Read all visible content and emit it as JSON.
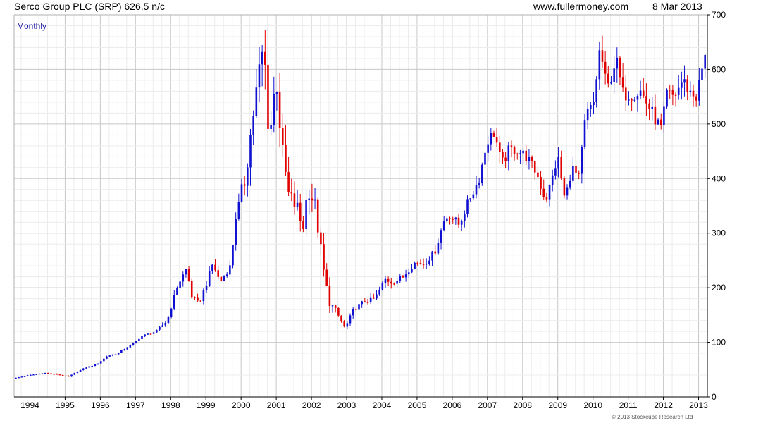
{
  "header": {
    "title": "Serco Group PLC (SRP) 626.5 n/c",
    "website": "www.fullermoney.com",
    "date": "8 Mar 2013"
  },
  "period_label": "Monthly",
  "copyright": "© 2013 Stockcube Research Ltd",
  "colors": {
    "up": "#1010d0",
    "down": "#e00000",
    "grid": "#dcdcdc",
    "axis": "#000000"
  },
  "chart_data": {
    "type": "candlestick",
    "title": "Serco Group PLC (SRP) 626.5 n/c",
    "xlabel": "",
    "ylabel": "",
    "xlim": [
      1993.55,
      1994.0,
      2013.25
    ],
    "ylim": [
      0,
      700
    ],
    "yticks": [
      0,
      100,
      200,
      300,
      400,
      500,
      600,
      700
    ],
    "xticks": [
      1994,
      1995,
      1996,
      1997,
      1998,
      1999,
      2000,
      2001,
      2002,
      2003,
      2004,
      2005,
      2006,
      2007,
      2008,
      2009,
      2010,
      2011,
      2012,
      2013
    ],
    "grid": true,
    "y_axis_side": "right",
    "start": "1993-08",
    "anchors": [
      [
        1993.6,
        35
      ],
      [
        1994.0,
        40
      ],
      [
        1994.4,
        44
      ],
      [
        1994.8,
        41
      ],
      [
        1995.1,
        37
      ],
      [
        1995.3,
        45
      ],
      [
        1995.6,
        54
      ],
      [
        1995.9,
        60
      ],
      [
        1996.2,
        75
      ],
      [
        1996.5,
        80
      ],
      [
        1996.9,
        97
      ],
      [
        1997.2,
        112
      ],
      [
        1997.6,
        120
      ],
      [
        1997.9,
        140
      ],
      [
        1998.2,
        205
      ],
      [
        1998.45,
        235
      ],
      [
        1998.6,
        185
      ],
      [
        1998.8,
        170
      ],
      [
        1999.0,
        205
      ],
      [
        1999.2,
        245
      ],
      [
        1999.4,
        210
      ],
      [
        1999.7,
        240
      ],
      [
        1999.85,
        330
      ],
      [
        2000.1,
        395
      ],
      [
        2000.35,
        520
      ],
      [
        2000.55,
        610
      ],
      [
        2000.65,
        640
      ],
      [
        2000.8,
        470
      ],
      [
        2001.0,
        590
      ],
      [
        2001.15,
        460
      ],
      [
        2001.35,
        370
      ],
      [
        2001.6,
        345
      ],
      [
        2001.75,
        305
      ],
      [
        2001.9,
        385
      ],
      [
        2002.1,
        350
      ],
      [
        2002.35,
        230
      ],
      [
        2002.5,
        175
      ],
      [
        2002.75,
        150
      ],
      [
        2002.95,
        125
      ],
      [
        2003.2,
        160
      ],
      [
        2003.5,
        175
      ],
      [
        2003.8,
        180
      ],
      [
        2004.1,
        215
      ],
      [
        2004.3,
        210
      ],
      [
        2004.6,
        220
      ],
      [
        2004.9,
        245
      ],
      [
        2005.2,
        245
      ],
      [
        2005.5,
        265
      ],
      [
        2005.75,
        320
      ],
      [
        2005.9,
        335
      ],
      [
        2006.2,
        315
      ],
      [
        2006.5,
        365
      ],
      [
        2006.75,
        395
      ],
      [
        2007.0,
        470
      ],
      [
        2007.2,
        485
      ],
      [
        2007.4,
        425
      ],
      [
        2007.6,
        450
      ],
      [
        2007.8,
        455
      ],
      [
        2008.1,
        440
      ],
      [
        2008.4,
        410
      ],
      [
        2008.65,
        360
      ],
      [
        2008.8,
        390
      ],
      [
        2009.0,
        440
      ],
      [
        2009.2,
        360
      ],
      [
        2009.4,
        420
      ],
      [
        2009.6,
        400
      ],
      [
        2009.8,
        520
      ],
      [
        2010.0,
        530
      ],
      [
        2010.2,
        640
      ],
      [
        2010.4,
        560
      ],
      [
        2010.65,
        620
      ],
      [
        2010.85,
        555
      ],
      [
        2011.1,
        555
      ],
      [
        2011.35,
        560
      ],
      [
        2011.6,
        530
      ],
      [
        2011.8,
        505
      ],
      [
        2011.95,
        490
      ],
      [
        2012.1,
        555
      ],
      [
        2012.3,
        550
      ],
      [
        2012.55,
        580
      ],
      [
        2012.8,
        555
      ],
      [
        2012.95,
        550
      ],
      [
        2013.1,
        600
      ],
      [
        2013.18,
        626.5
      ]
    ]
  }
}
